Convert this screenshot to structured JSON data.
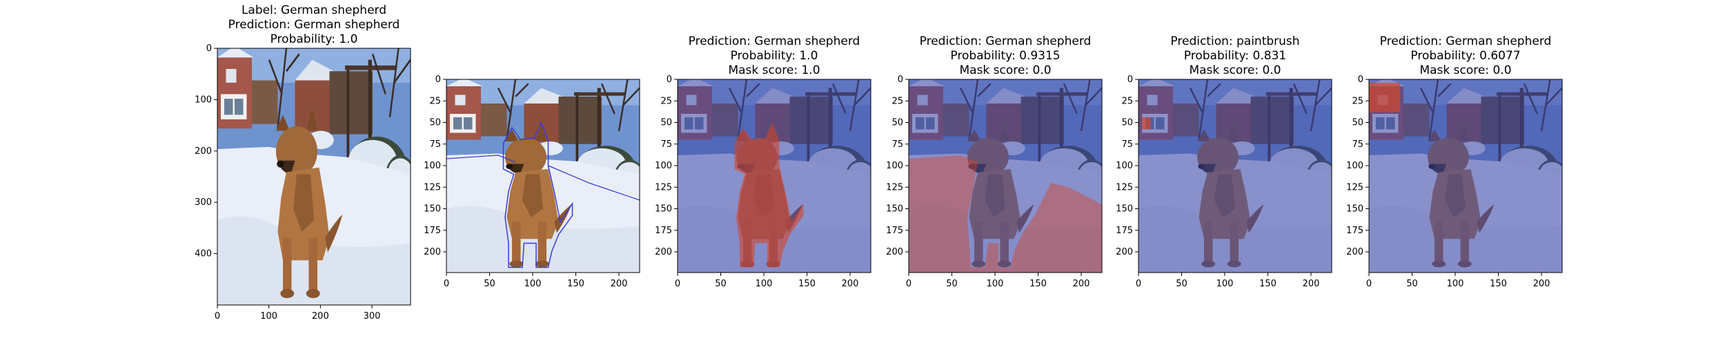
{
  "chart_data": [
    {
      "type": "image",
      "title_lines": [
        "Label: German shepherd",
        "Prediction: German shepherd",
        "Probability: 1.0"
      ],
      "x_ticks": [
        "0",
        "100",
        "200",
        "300"
      ],
      "y_ticks": [
        "0",
        "100",
        "200",
        "300",
        "400"
      ],
      "xlim": [
        0,
        375
      ],
      "ylim": [
        500,
        0
      ],
      "overlay": "none"
    },
    {
      "type": "image",
      "title_lines": [],
      "x_ticks": [
        "0",
        "50",
        "100",
        "150",
        "200"
      ],
      "y_ticks": [
        "0",
        "25",
        "50",
        "75",
        "100",
        "125",
        "150",
        "175",
        "200"
      ],
      "xlim": [
        0,
        224
      ],
      "ylim": [
        224,
        0
      ],
      "overlay": "dog-outline"
    },
    {
      "type": "image",
      "title_lines": [
        "Prediction: German shepherd",
        "Probability: 1.0",
        "Mask score: 1.0"
      ],
      "x_ticks": [
        "0",
        "50",
        "100",
        "150",
        "200"
      ],
      "y_ticks": [
        "0",
        "25",
        "50",
        "75",
        "100",
        "125",
        "150",
        "175",
        "200"
      ],
      "xlim": [
        0,
        224
      ],
      "ylim": [
        224,
        0
      ],
      "overlay": "dog-mask"
    },
    {
      "type": "image",
      "title_lines": [
        "Prediction: German shepherd",
        "Probability: 0.9315",
        "Mask score: 0.0"
      ],
      "x_ticks": [
        "0",
        "50",
        "100",
        "150",
        "200"
      ],
      "y_ticks": [
        "0",
        "25",
        "50",
        "75",
        "100",
        "125",
        "150",
        "175",
        "200"
      ],
      "xlim": [
        0,
        224
      ],
      "ylim": [
        224,
        0
      ],
      "overlay": "snow-mask"
    },
    {
      "type": "image",
      "title_lines": [
        "Prediction: paintbrush",
        "Probability: 0.831",
        "Mask score: 0.0"
      ],
      "x_ticks": [
        "0",
        "50",
        "100",
        "150",
        "200"
      ],
      "y_ticks": [
        "0",
        "25",
        "50",
        "75",
        "100",
        "125",
        "150",
        "175",
        "200"
      ],
      "xlim": [
        0,
        224
      ],
      "ylim": [
        224,
        0
      ],
      "overlay": "window-mask"
    },
    {
      "type": "image",
      "title_lines": [
        "Prediction: German shepherd",
        "Probability: 0.6077",
        "Mask score: 0.0"
      ],
      "x_ticks": [
        "0",
        "50",
        "100",
        "150",
        "200"
      ],
      "y_ticks": [
        "0",
        "25",
        "50",
        "75",
        "100",
        "125",
        "150",
        "175",
        "200"
      ],
      "xlim": [
        0,
        224
      ],
      "ylim": [
        224,
        0
      ],
      "overlay": "house-mask"
    }
  ],
  "colors": {
    "sky": "#6f93cf",
    "snow": "#e9eef8",
    "fence": "#7a5a45",
    "house": "#a4574a",
    "dog": "#a0693a",
    "blue_tint": "#3a46a8",
    "red_tint": "#d4442a",
    "outline": "#3b3bd6"
  }
}
